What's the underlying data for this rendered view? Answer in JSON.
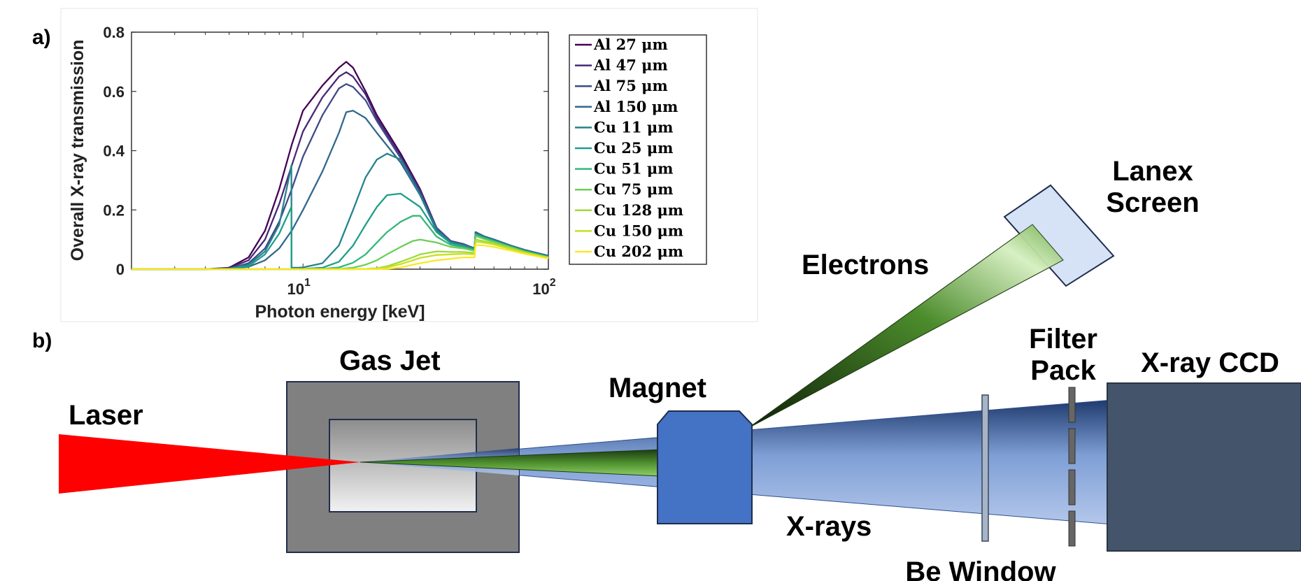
{
  "panel_a_label": "a)",
  "panel_b_label": "b)",
  "chart_data": {
    "type": "line",
    "xscale": "log",
    "xlim": [
      2,
      100
    ],
    "ylim": [
      0,
      0.8
    ],
    "xlabel": "Photon energy [keV]",
    "ylabel": "Overall X-ray transmission",
    "xticks": [
      {
        "base": "10",
        "exp": "1",
        "value": 10
      },
      {
        "base": "10",
        "exp": "2",
        "value": 100
      }
    ],
    "yticks": [
      "0",
      "0.2",
      "0.4",
      "0.6",
      "0.8"
    ],
    "ytick_values": [
      0,
      0.2,
      0.4,
      0.6,
      0.8
    ],
    "legend_position": "outside-right",
    "series": [
      {
        "name": "Al 27 μm",
        "color": "#440154",
        "x": [
          2,
          4,
          5,
          6,
          7,
          8,
          9,
          10,
          12,
          14,
          15,
          16,
          18,
          20,
          25,
          30,
          35,
          40,
          45,
          50,
          50.5,
          55,
          60,
          70,
          80,
          100
        ],
        "y": [
          0,
          0,
          0.005,
          0.04,
          0.13,
          0.27,
          0.42,
          0.535,
          0.62,
          0.68,
          0.7,
          0.68,
          0.6,
          0.52,
          0.39,
          0.27,
          0.14,
          0.095,
          0.085,
          0.07,
          0.125,
          0.11,
          0.1,
          0.08,
          0.065,
          0.045
        ]
      },
      {
        "name": "Al 47 μm",
        "color": "#482878",
        "x": [
          2,
          4,
          5,
          6,
          7,
          8,
          9,
          10,
          12,
          14,
          15,
          16,
          18,
          20,
          25,
          30,
          35,
          40,
          45,
          50,
          50.5,
          55,
          60,
          70,
          80,
          100
        ],
        "y": [
          0,
          0,
          0.004,
          0.03,
          0.1,
          0.22,
          0.35,
          0.465,
          0.58,
          0.65,
          0.665,
          0.65,
          0.59,
          0.51,
          0.38,
          0.265,
          0.14,
          0.095,
          0.085,
          0.07,
          0.125,
          0.11,
          0.1,
          0.08,
          0.065,
          0.045
        ]
      },
      {
        "name": "Al 75 μm",
        "color": "#3e4a89",
        "x": [
          2,
          4,
          5,
          6,
          7,
          8,
          9,
          10,
          12,
          14,
          15,
          16,
          18,
          20,
          25,
          30,
          35,
          40,
          45,
          50,
          50.5,
          55,
          60,
          70,
          80,
          100
        ],
        "y": [
          0,
          0,
          0.002,
          0.02,
          0.07,
          0.16,
          0.27,
          0.38,
          0.52,
          0.61,
          0.625,
          0.615,
          0.57,
          0.5,
          0.375,
          0.26,
          0.14,
          0.094,
          0.084,
          0.07,
          0.124,
          0.11,
          0.1,
          0.08,
          0.065,
          0.045
        ]
      },
      {
        "name": "Al 150 μm",
        "color": "#31688e",
        "x": [
          2,
          4,
          5,
          6,
          7,
          8,
          9,
          10,
          12,
          14,
          15,
          16,
          18,
          20,
          25,
          30,
          35,
          40,
          45,
          50,
          50.5,
          55,
          60,
          70,
          80,
          100
        ],
        "y": [
          0,
          0,
          0.001,
          0.008,
          0.03,
          0.07,
          0.13,
          0.2,
          0.33,
          0.46,
          0.53,
          0.535,
          0.51,
          0.46,
          0.36,
          0.25,
          0.135,
          0.093,
          0.083,
          0.07,
          0.124,
          0.11,
          0.1,
          0.08,
          0.065,
          0.045
        ]
      },
      {
        "name": "Cu 11 μm",
        "color": "#26828e",
        "x": [
          2,
          4,
          5,
          6,
          7,
          8,
          8.97,
          8.98,
          9.5,
          10,
          12,
          14,
          16,
          18,
          20,
          22,
          25,
          30,
          35,
          40,
          45,
          50,
          50.5,
          55,
          60,
          70,
          80,
          100
        ],
        "y": [
          0,
          0,
          0.002,
          0.015,
          0.06,
          0.15,
          0.35,
          0.005,
          0.005,
          0.006,
          0.02,
          0.08,
          0.2,
          0.31,
          0.37,
          0.39,
          0.37,
          0.25,
          0.13,
          0.09,
          0.08,
          0.068,
          0.12,
          0.108,
          0.098,
          0.078,
          0.063,
          0.043
        ]
      },
      {
        "name": "Cu 25 μm",
        "color": "#1f9e89",
        "x": [
          2,
          4,
          5,
          6,
          7,
          8,
          8.97,
          8.98,
          10,
          12,
          14,
          16,
          18,
          20,
          22,
          25,
          30,
          35,
          40,
          45,
          50,
          50.5,
          55,
          60,
          70,
          80,
          100
        ],
        "y": [
          0,
          0,
          0.001,
          0.01,
          0.05,
          0.12,
          0.21,
          0,
          0.001,
          0.005,
          0.025,
          0.08,
          0.15,
          0.21,
          0.25,
          0.255,
          0.21,
          0.125,
          0.088,
          0.078,
          0.066,
          0.118,
          0.106,
          0.096,
          0.077,
          0.062,
          0.042
        ]
      },
      {
        "name": "Cu 51 μm",
        "color": "#35b779",
        "x": [
          2,
          8.98,
          10,
          12,
          14,
          16,
          18,
          20,
          22,
          25,
          28,
          30,
          35,
          40,
          45,
          50,
          50.5,
          55,
          60,
          70,
          80,
          100
        ],
        "y": [
          0,
          0,
          0,
          0.001,
          0.006,
          0.022,
          0.05,
          0.09,
          0.125,
          0.16,
          0.18,
          0.18,
          0.11,
          0.082,
          0.074,
          0.064,
          0.115,
          0.104,
          0.094,
          0.075,
          0.06,
          0.041
        ]
      },
      {
        "name": "Cu 75 μm",
        "color": "#6ece58",
        "x": [
          2,
          10,
          12,
          14,
          16,
          18,
          20,
          22,
          25,
          28,
          30,
          35,
          40,
          45,
          50,
          50.5,
          55,
          60,
          70,
          80,
          100
        ],
        "y": [
          0,
          0,
          0,
          0.001,
          0.005,
          0.015,
          0.03,
          0.05,
          0.075,
          0.095,
          0.1,
          0.09,
          0.075,
          0.07,
          0.062,
          0.112,
          0.101,
          0.092,
          0.074,
          0.059,
          0.04
        ]
      },
      {
        "name": "Cu 128 μm",
        "color": "#a0da39",
        "x": [
          2,
          14,
          16,
          18,
          20,
          22,
          25,
          28,
          30,
          35,
          40,
          45,
          50,
          50.5,
          55,
          60,
          70,
          80,
          100
        ],
        "y": [
          0,
          0,
          0,
          0.001,
          0.003,
          0.01,
          0.025,
          0.04,
          0.05,
          0.06,
          0.058,
          0.058,
          0.055,
          0.1,
          0.094,
          0.087,
          0.071,
          0.057,
          0.039
        ]
      },
      {
        "name": "Cu 150 μm",
        "color": "#c8e020",
        "x": [
          2,
          16,
          18,
          20,
          22,
          25,
          28,
          30,
          35,
          40,
          45,
          50,
          50.5,
          55,
          60,
          70,
          80,
          100
        ],
        "y": [
          0,
          0,
          0,
          0.002,
          0.006,
          0.017,
          0.03,
          0.038,
          0.048,
          0.05,
          0.052,
          0.05,
          0.093,
          0.089,
          0.083,
          0.068,
          0.055,
          0.038
        ]
      },
      {
        "name": "Cu 202 μm",
        "color": "#fde725",
        "x": [
          2,
          18,
          20,
          22,
          25,
          28,
          30,
          35,
          40,
          45,
          50,
          50.5,
          55,
          60,
          70,
          80,
          100
        ],
        "y": [
          0,
          0,
          0,
          0.001,
          0.006,
          0.015,
          0.02,
          0.03,
          0.035,
          0.04,
          0.04,
          0.082,
          0.08,
          0.075,
          0.063,
          0.052,
          0.036
        ]
      }
    ]
  },
  "diagram": {
    "laser_label": "Laser",
    "gas_jet_label": "Gas Jet",
    "magnet_label": "Magnet",
    "electrons_label": "Electrons",
    "lanex_label_line1": "Lanex",
    "lanex_label_line2": "Screen",
    "xrays_label": "X-rays",
    "filter_pack_label_line1": "Filter",
    "filter_pack_label_line2": "Pack",
    "be_window_label": "Be Window",
    "ccd_label": "X-ray CCD",
    "colors": {
      "laser": "#ff0000",
      "gas_jet_outer": "#808080",
      "magnet": "#4472c4",
      "ccd": "#44546a",
      "lanex": "#d6e2f5",
      "electron_beam": "#5a9a3a",
      "xray_beam": "#a9bfe6"
    }
  }
}
